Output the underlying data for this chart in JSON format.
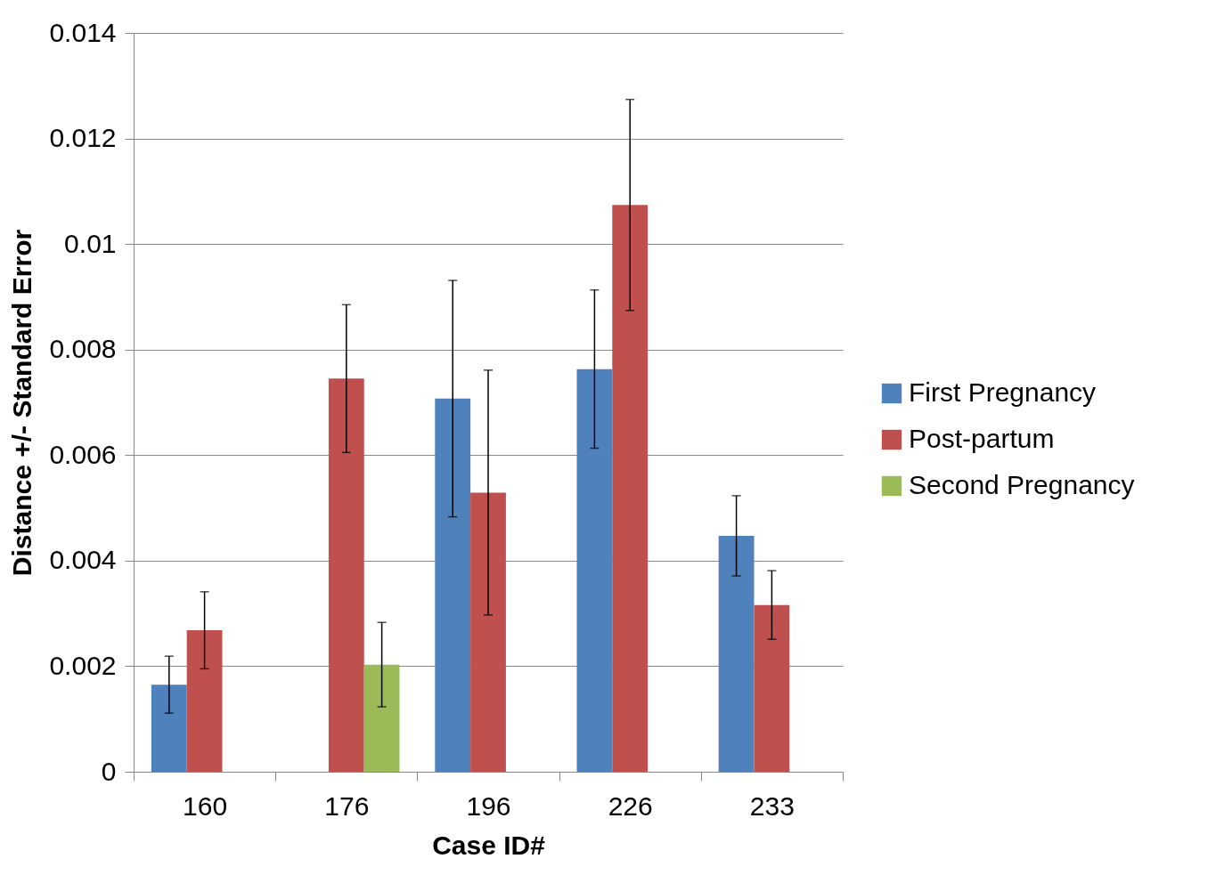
{
  "chart_data": {
    "type": "bar",
    "xlabel": "Case ID#",
    "ylabel": "Distance +/- Standard Error",
    "categories": [
      "160",
      "176",
      "196",
      "226",
      "233"
    ],
    "series": [
      {
        "name": "First Pregnancy",
        "color": "#4f81bd",
        "values": [
          0.00165,
          null,
          0.00707,
          0.00763,
          0.00447
        ],
        "errors": [
          0.00054,
          null,
          0.00224,
          0.0015,
          0.00076
        ]
      },
      {
        "name": "Post-partum",
        "color": "#c0504d",
        "values": [
          0.00268,
          0.00745,
          0.00529,
          0.01074,
          0.00316
        ],
        "errors": [
          0.00073,
          0.0014,
          0.00232,
          0.002,
          0.00065
        ]
      },
      {
        "name": "Second Pregnancy",
        "color": "#9bbb59",
        "values": [
          null,
          0.00203,
          null,
          null,
          null
        ],
        "errors": [
          null,
          0.0008,
          null,
          null,
          null
        ]
      }
    ],
    "ylim": [
      0,
      0.014
    ],
    "yticks": [
      0,
      0.002,
      0.004,
      0.006,
      0.008,
      0.01,
      0.012,
      0.014
    ],
    "grid": "y",
    "legend": "right"
  }
}
